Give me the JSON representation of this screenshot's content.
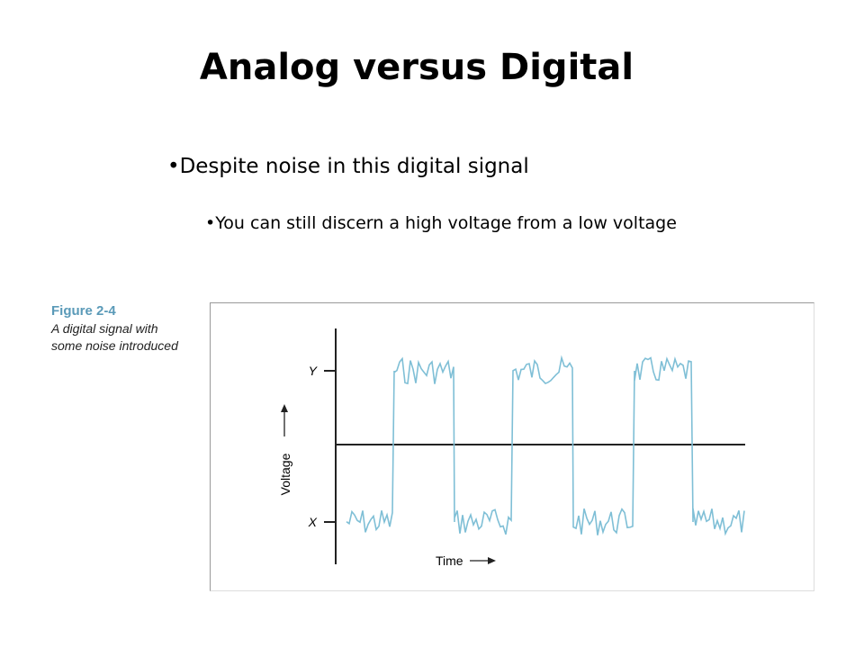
{
  "title": "Analog versus Digital",
  "bullets": [
    "•Despite noise in this digital signal",
    "•You can still discern a high voltage from a low voltage"
  ],
  "figure": {
    "caption_title": "Figure 2-4",
    "caption_lines": [
      "A digital signal with",
      "some noise introduced"
    ],
    "y_high_label": "Y",
    "y_low_label": "X",
    "y_axis_label": "Voltage",
    "x_axis_label": "Time"
  }
}
